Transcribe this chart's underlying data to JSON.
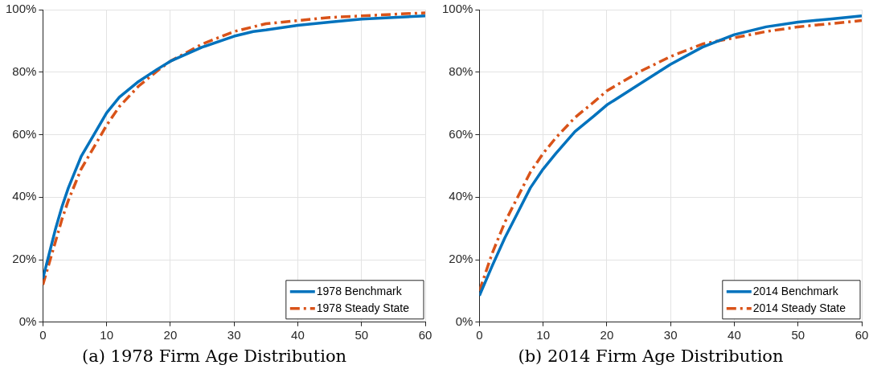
{
  "chart_data": [
    {
      "type": "line",
      "title": "(a) 1978 Firm Age Distribution",
      "xlim": [
        0,
        60
      ],
      "xticks": [
        0,
        10,
        20,
        30,
        40,
        50,
        60
      ],
      "ylim": [
        0,
        100
      ],
      "yticks": [
        {
          "value": 0,
          "label": "0%"
        },
        {
          "value": 20,
          "label": "20%"
        },
        {
          "value": 40,
          "label": "40%"
        },
        {
          "value": 60,
          "label": "60%"
        },
        {
          "value": 80,
          "label": "80%"
        },
        {
          "value": 100,
          "label": "100%"
        }
      ],
      "grid": true,
      "legend": "bottom right",
      "marker": "none",
      "series": [
        {
          "name": "1978 Benchmark",
          "color": "#0072bd",
          "line_style": "solid",
          "x": [
            0,
            1,
            2,
            3,
            4,
            5,
            6,
            8,
            10,
            12,
            15,
            18,
            20,
            25,
            30,
            33,
            35,
            40,
            45,
            50,
            55,
            60
          ],
          "values": [
            14,
            22,
            30,
            37,
            43,
            48,
            53,
            60,
            67,
            72,
            77,
            81,
            83.5,
            88,
            91.5,
            93,
            93.5,
            95,
            96,
            97,
            97.5,
            98
          ]
        },
        {
          "name": "1978 Steady State",
          "color": "#d95319",
          "line_style": "dashed",
          "x": [
            0,
            1,
            2,
            3,
            4,
            5,
            6,
            8,
            10,
            12,
            15,
            18,
            20,
            25,
            30,
            35,
            40,
            45,
            50,
            55,
            60
          ],
          "values": [
            12,
            19,
            26,
            33,
            39,
            44,
            49,
            56,
            63,
            69,
            75.5,
            80.5,
            83.5,
            89,
            93,
            95.5,
            96.5,
            97.5,
            98,
            98.5,
            99
          ]
        }
      ]
    },
    {
      "type": "line",
      "title": "(b) 2014 Firm Age Distribution",
      "xlim": [
        0,
        60
      ],
      "xticks": [
        0,
        10,
        20,
        30,
        40,
        50,
        60
      ],
      "ylim": [
        0,
        100
      ],
      "yticks": [
        {
          "value": 0,
          "label": "0%"
        },
        {
          "value": 20,
          "label": "20%"
        },
        {
          "value": 40,
          "label": "40%"
        },
        {
          "value": 60,
          "label": "60%"
        },
        {
          "value": 80,
          "label": "80%"
        },
        {
          "value": 100,
          "label": "100%"
        }
      ],
      "grid": true,
      "legend": "bottom right",
      "marker": "none",
      "series": [
        {
          "name": "2014 Benchmark",
          "color": "#0072bd",
          "line_style": "solid",
          "x": [
            0,
            2,
            4,
            6,
            8,
            10,
            12,
            15,
            18,
            20,
            25,
            30,
            35,
            40,
            45,
            50,
            55,
            60
          ],
          "values": [
            8.5,
            18,
            27,
            35,
            43,
            49,
            54,
            61,
            66,
            69.5,
            76,
            82.5,
            88,
            92,
            94.5,
            96,
            97,
            98
          ]
        },
        {
          "name": "2014 Steady State",
          "color": "#d95319",
          "line_style": "dashed",
          "x": [
            0,
            2,
            4,
            6,
            8,
            10,
            12,
            15,
            18,
            20,
            25,
            30,
            35,
            40,
            45,
            50,
            55,
            60
          ],
          "values": [
            10,
            22,
            32,
            40,
            48,
            54,
            59,
            65.5,
            70.5,
            74,
            80,
            85,
            89,
            91,
            93,
            94.5,
            95.5,
            96.5
          ]
        }
      ]
    }
  ]
}
